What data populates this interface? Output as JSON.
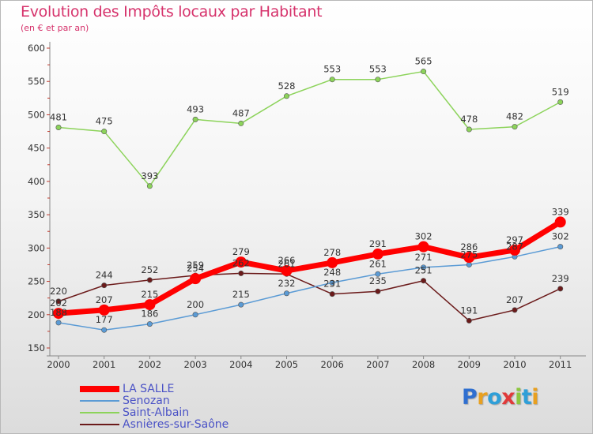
{
  "title": "Evolution des Impôts locaux par Habitant",
  "subtitle": "(en € et par an)",
  "brand": {
    "letters": [
      {
        "char": "P",
        "color": "#2f6fd0"
      },
      {
        "char": "r",
        "color": "#e8a020"
      },
      {
        "char": "o",
        "color": "#2f9fd8"
      },
      {
        "char": "x",
        "color": "#e03a3a"
      },
      {
        "char": "i",
        "color": "#8cc63e"
      },
      {
        "char": "t",
        "color": "#2f9fd8"
      },
      {
        "char": "i",
        "color": "#e8a020"
      }
    ]
  },
  "chart_data": {
    "type": "line",
    "x": [
      "2000",
      "2001",
      "2002",
      "2003",
      "2004",
      "2005",
      "2006",
      "2007",
      "2008",
      "2009",
      "2010",
      "2011"
    ],
    "ylim": [
      150,
      600
    ],
    "yticks": [
      150,
      200,
      250,
      300,
      350,
      400,
      450,
      500,
      550,
      600
    ],
    "grid": false,
    "legend_position": "bottom-left",
    "series": [
      {
        "name": "LA SALLE",
        "color": "#ff0000",
        "values": [
          202,
          207,
          215,
          254,
          279,
          266,
          278,
          291,
          302,
          286,
          297,
          339
        ]
      },
      {
        "name": "Senozan",
        "color": "#5b9bd5",
        "values": [
          188,
          177,
          186,
          200,
          215,
          232,
          248,
          261,
          271,
          275,
          287,
          302
        ]
      },
      {
        "name": "Saint-Albain",
        "color": "#8cd35a",
        "values": [
          481,
          475,
          393,
          493,
          487,
          528,
          553,
          553,
          565,
          478,
          482,
          519
        ]
      },
      {
        "name": "Asnières-sur-Saône",
        "color": "#6b1a1a",
        "values": [
          220,
          244,
          252,
          259,
          262,
          261,
          231,
          235,
          251,
          191,
          207,
          239
        ]
      }
    ]
  }
}
